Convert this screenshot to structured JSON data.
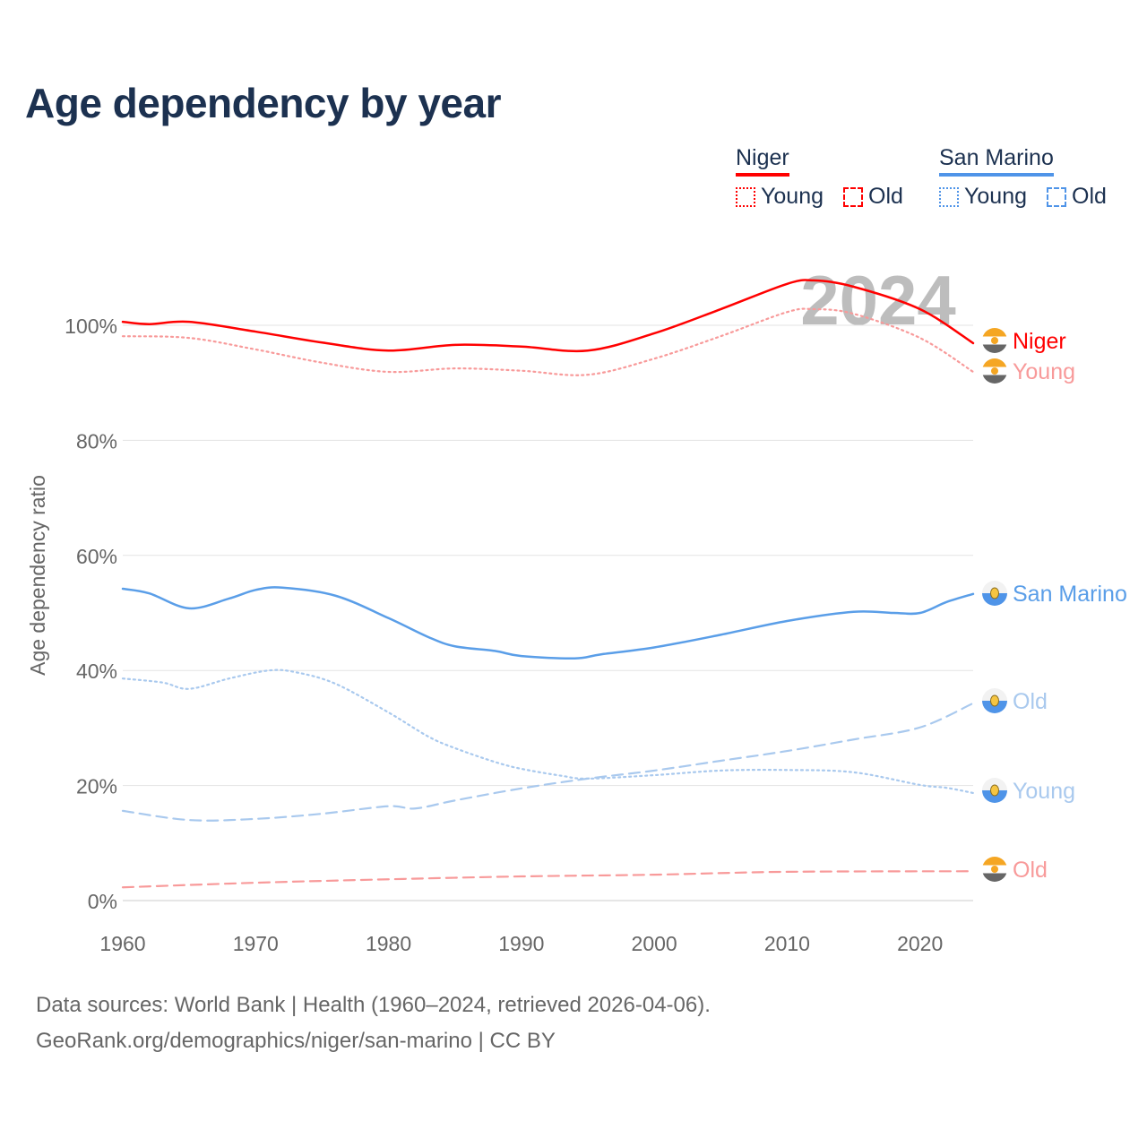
{
  "title": "Age dependency by year",
  "legend": {
    "groups": [
      {
        "name": "Niger",
        "color": "#ff0000",
        "items": [
          "Young",
          "Old"
        ]
      },
      {
        "name": "San Marino",
        "color": "#4f94e8",
        "items": [
          "Young",
          "Old"
        ]
      }
    ]
  },
  "footer": {
    "line1": "Data sources: World Bank | Health (1960–2024, retrieved 2026-04-06).",
    "line2": "GeoRank.org/demographics/niger/san-marino | CC BY"
  },
  "chart_data": {
    "type": "line",
    "title": "Age dependency by year",
    "xlabel": "",
    "ylabel": "Age dependency ratio",
    "xlim": [
      1960,
      2024
    ],
    "ylim": [
      0,
      110
    ],
    "x_ticks": [
      "1960",
      "1970",
      "1980",
      "1990",
      "2000",
      "2010",
      "2020"
    ],
    "y_ticks": [
      "0%",
      "20%",
      "40%",
      "60%",
      "80%",
      "100%"
    ],
    "year_watermark": "2024",
    "grid": true,
    "series": [
      {
        "name": "Niger",
        "label": "Niger",
        "country": "Niger",
        "kind": "total",
        "color": "#ff0000",
        "dash": "solid",
        "x": [
          1960,
          1962,
          1965,
          1970,
          1975,
          1980,
          1985,
          1990,
          1995,
          2000,
          2005,
          2010,
          2012,
          2015,
          2020,
          2024
        ],
        "y": [
          100.6,
          100.2,
          100.6,
          98.9,
          97.0,
          95.6,
          96.6,
          96.3,
          95.6,
          98.6,
          102.8,
          107.2,
          107.8,
          106.7,
          102.8,
          96.9
        ]
      },
      {
        "name": "Niger Young",
        "label": "Young",
        "country": "Niger",
        "kind": "young",
        "color": "#f89a9a",
        "dash": "dotted",
        "x": [
          1960,
          1965,
          1970,
          1975,
          1980,
          1985,
          1990,
          1995,
          2000,
          2005,
          2010,
          2012,
          2015,
          2020,
          2024
        ],
        "y": [
          98.1,
          97.8,
          95.8,
          93.5,
          91.9,
          92.5,
          92.1,
          91.4,
          94.2,
          98.1,
          102.3,
          102.8,
          102.0,
          97.8,
          91.9
        ]
      },
      {
        "name": "Niger Old",
        "label": "Old",
        "country": "Niger",
        "kind": "old",
        "color": "#f89a9a",
        "dash": "dashed",
        "x": [
          1960,
          1970,
          1980,
          1990,
          2000,
          2010,
          2024
        ],
        "y": [
          2.3,
          3.1,
          3.7,
          4.2,
          4.5,
          5.0,
          5.1
        ]
      },
      {
        "name": "San Marino",
        "label": "San Marino",
        "country": "San Marino",
        "kind": "total",
        "color": "#5a9ee8",
        "dash": "solid",
        "x": [
          1960,
          1962,
          1965,
          1968,
          1970,
          1972,
          1976,
          1980,
          1983,
          1985,
          1988,
          1990,
          1994,
          1996,
          2000,
          2005,
          2010,
          2015,
          2018,
          2020,
          2022,
          2024
        ],
        "y": [
          54.2,
          53.4,
          50.8,
          52.5,
          54.0,
          54.4,
          53.0,
          49.1,
          45.8,
          44.2,
          43.4,
          42.5,
          42.1,
          42.8,
          44.0,
          46.2,
          48.6,
          50.2,
          50.0,
          50.0,
          51.9,
          53.3
        ]
      },
      {
        "name": "San Marino Old",
        "label": "Old",
        "country": "San Marino",
        "kind": "old",
        "color": "#a9c9ee",
        "dash": "dashed",
        "x": [
          1960,
          1965,
          1970,
          1975,
          1980,
          1982,
          1985,
          1990,
          1995,
          2000,
          2005,
          2010,
          2015,
          2020,
          2024
        ],
        "y": [
          15.6,
          14.0,
          14.2,
          15.1,
          16.4,
          16.0,
          17.4,
          19.5,
          21.2,
          22.6,
          24.3,
          26.0,
          28.0,
          30.1,
          34.3
        ]
      },
      {
        "name": "San Marino Young",
        "label": "Young",
        "country": "San Marino",
        "kind": "young",
        "color": "#a9c9ee",
        "dash": "dotted",
        "x": [
          1960,
          1963,
          1965,
          1968,
          1971,
          1973,
          1976,
          1980,
          1983,
          1985,
          1988,
          1990,
          1993,
          1995,
          2000,
          2005,
          2010,
          2015,
          2020,
          2022,
          2024
        ],
        "y": [
          38.6,
          37.9,
          36.8,
          38.6,
          40.0,
          39.7,
          37.7,
          32.7,
          28.5,
          26.5,
          24.1,
          22.9,
          21.7,
          21.2,
          21.8,
          22.6,
          22.7,
          22.3,
          20.1,
          19.6,
          18.7
        ]
      }
    ]
  }
}
